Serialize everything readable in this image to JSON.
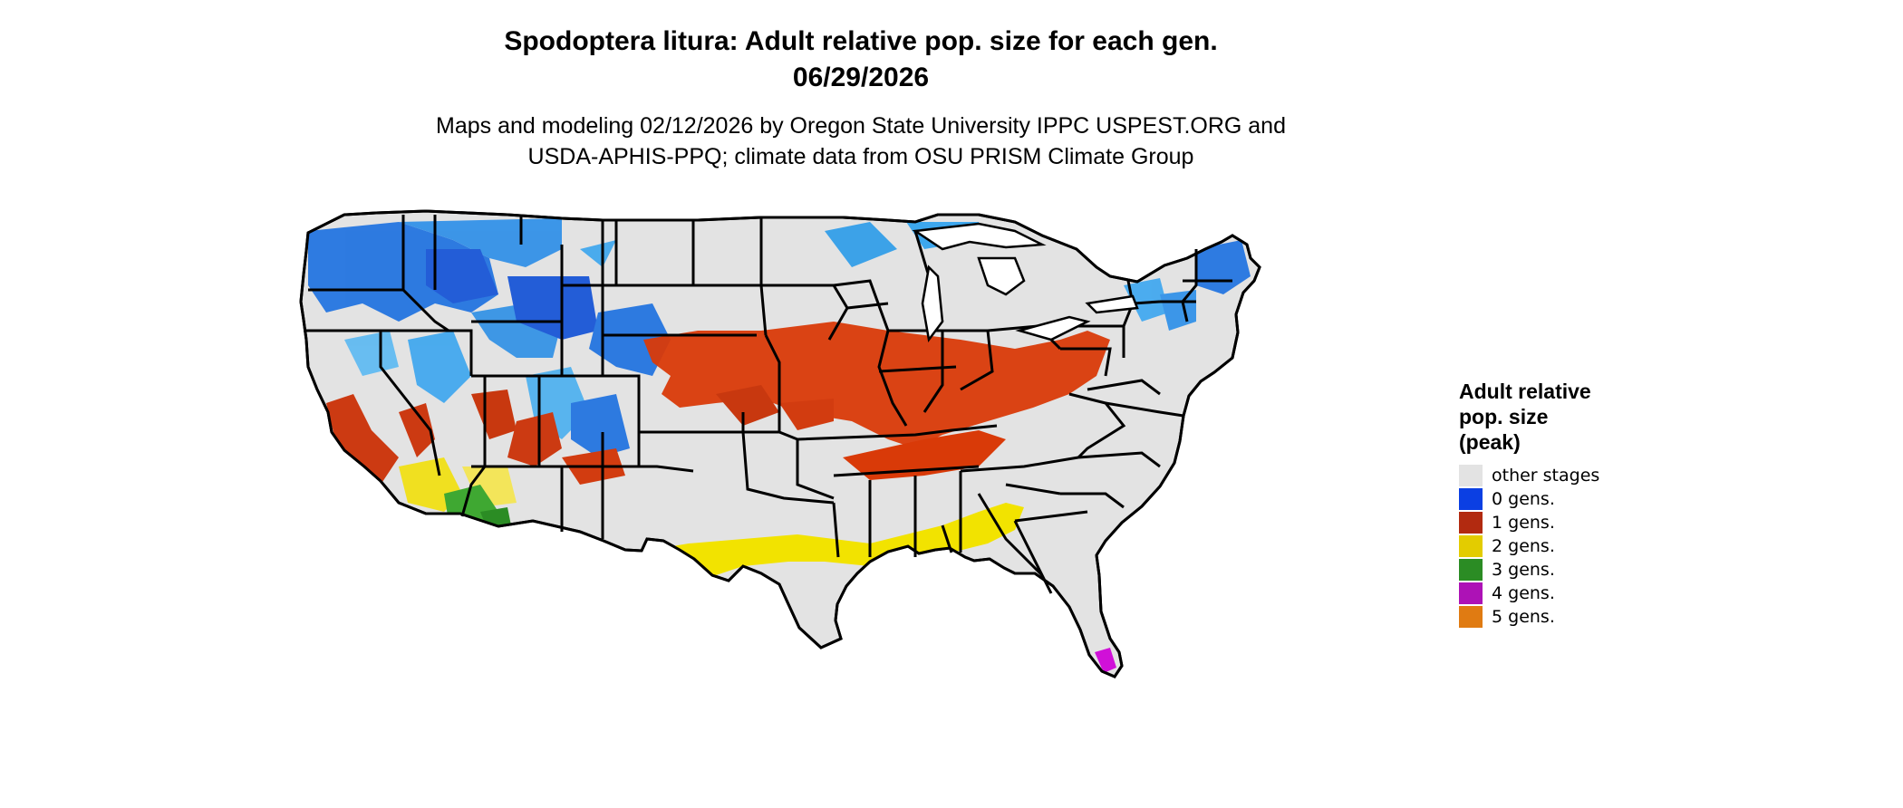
{
  "title": {
    "line1": "Spodoptera litura: Adult relative pop. size for each gen.",
    "line2": "06/29/2026"
  },
  "credit": {
    "line1": "Maps and modeling 02/12/2026 by Oregon State University IPPC USPEST.ORG and",
    "line2": "USDA-APHIS-PPQ; climate data from OSU PRISM Climate Group"
  },
  "map": {
    "base_color": "#e3e3e3",
    "border_color": "#000000"
  },
  "legend": {
    "title_lines": [
      "Adult relative",
      "pop. size",
      "(peak)"
    ],
    "items": [
      {
        "label": "other stages",
        "color": "#e3e3e3"
      },
      {
        "label": "0 gens.",
        "color": "#0b3fe3"
      },
      {
        "label": "1 gens.",
        "color": "#b22a10"
      },
      {
        "label": "2 gens.",
        "color": "#e3cc00"
      },
      {
        "label": "3 gens.",
        "color": "#2b8c24"
      },
      {
        "label": "4 gens.",
        "color": "#ad12b6"
      },
      {
        "label": "5 gens.",
        "color": "#e07b12"
      }
    ]
  }
}
